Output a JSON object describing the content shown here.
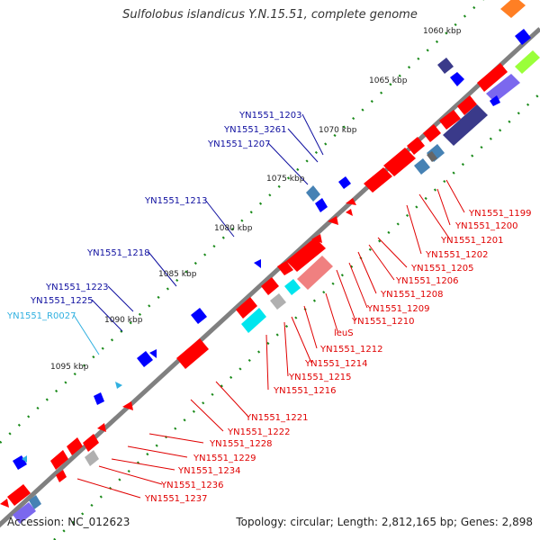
{
  "title": "Sulfolobus islandicus Y.N.15.51, complete genome",
  "footer": {
    "accession": "Accession: NC_012623",
    "summary": "Topology: circular; Length: 2,812,165 bp; Genes: 2,898"
  },
  "colors": {
    "backbone": "#808080",
    "feature_red": "#ff0000",
    "feature_blue": "#0000ff",
    "feature_navy": "#3a3a8a",
    "feature_steel": "#4682b4",
    "feature_cyan": "#00e5ee",
    "feature_grey": "#b0b0b0",
    "feature_salmon": "#f08080",
    "feature_lime": "#9aff3a",
    "feature_orange": "#ff7f24",
    "feature_purple": "#7b68ee",
    "label_red": "#e00000",
    "label_blue": "#1010a0",
    "label_cyan": "#30b0e0",
    "tick_green": "#1a8a1a"
  },
  "scale_labels": [
    "1060 kbp",
    "1065 kbp",
    "1070 kbp",
    "1075 kbp",
    "1080 kbp",
    "1085 kbp",
    "1090 kbp",
    "1095 kbp"
  ],
  "gene_labels_blue": [
    "YN1551_1203",
    "YN1551_3261",
    "YN1551_1207",
    "YN1551_1213",
    "YN1551_1218",
    "YN1551_1223",
    "YN1551_1225"
  ],
  "gene_labels_cyan": [
    "YN1551_R0027"
  ],
  "gene_labels_red": [
    "YN1551_1199",
    "YN1551_1200",
    "YN1551_1201",
    "YN1551_1202",
    "YN1551_1205",
    "YN1551_1206",
    "YN1551_1208",
    "YN1551_1209",
    "YN1551_1210",
    "leuS",
    "YN1551_1212",
    "YN1551_1214",
    "YN1551_1215",
    "YN1551_1216",
    "YN1551_1221",
    "YN1551_1222",
    "YN1551_1228",
    "YN1551_1229",
    "YN1551_1234",
    "YN1551_1236",
    "YN1551_1237"
  ]
}
